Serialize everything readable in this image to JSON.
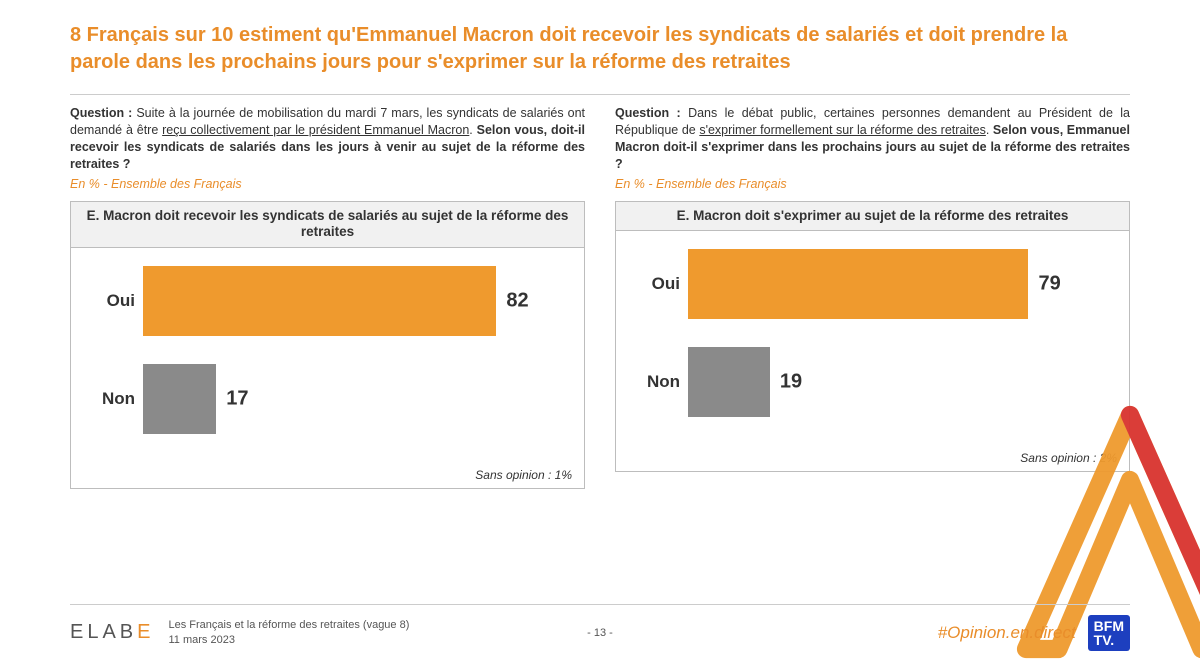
{
  "headline": "8 Français sur 10 estiment qu'Emmanuel Macron doit recevoir les syndicats de salariés et doit prendre la parole dans les prochains jours pour s'exprimer sur la réforme des retraites",
  "colors": {
    "accent": "#e98d2a",
    "bar_oui": "#ef9a2e",
    "bar_non": "#8a8a8a",
    "gridline": "#bdbdbd",
    "title_bg": "#f1f1f1",
    "text": "#333333",
    "bfm_bg": "#1d3fbf"
  },
  "panels": [
    {
      "question_label": "Question :",
      "question_pre": " Suite à la journée de mobilisation du mardi 7 mars, les syndicats de salariés ont demandé à être ",
      "question_under": "reçu collectivement par le président Emmanuel Macron",
      "question_post": ". ",
      "question_bold": "Selon vous, doit-il recevoir les syndicats de salariés dans les jours à venir au sujet de la réforme des retraites ?",
      "subtitle": "En % - Ensemble des Français",
      "chart": {
        "type": "bar-horizontal",
        "title": "E. Macron doit recevoir les syndicats de salariés au sujet de la réforme des retraites",
        "max": 100,
        "bars": [
          {
            "label": "Oui",
            "value": 82,
            "color": "#ef9a2e"
          },
          {
            "label": "Non",
            "value": 17,
            "color": "#8a8a8a"
          }
        ],
        "no_opinion": "Sans opinion : 1%"
      }
    },
    {
      "question_label": "Question :",
      "question_pre": " Dans le débat public, certaines personnes demandent au Président de la République de ",
      "question_under": "s'exprimer formellement sur la réforme des retraites",
      "question_post": ". ",
      "question_bold": "Selon vous, Emmanuel Macron doit-il s'exprimer dans les prochains jours au sujet de la réforme des retraites ?",
      "subtitle": "En % - Ensemble des Français",
      "chart": {
        "type": "bar-horizontal",
        "title": "E. Macron doit s'exprimer au sujet de la réforme des retraites",
        "max": 100,
        "bars": [
          {
            "label": "Oui",
            "value": 79,
            "color": "#ef9a2e"
          },
          {
            "label": "Non",
            "value": 19,
            "color": "#8a8a8a"
          }
        ],
        "no_opinion": "Sans opinion : 2%"
      }
    }
  ],
  "footer": {
    "brand_pre": "ELAB",
    "brand_accent": "E",
    "meta_line1": "Les Français et la réforme des retraites (vague 8)",
    "meta_line2": "11 mars 2023",
    "page": "- 13 -",
    "hashtag": "#Opinion.en.direct",
    "bfm_l1": "BFM",
    "bfm_l2": "TV."
  }
}
